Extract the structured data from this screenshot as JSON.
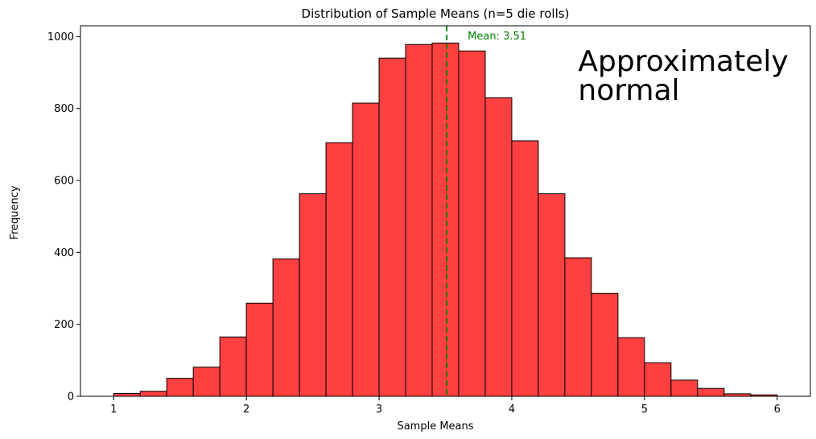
{
  "chart_data": {
    "type": "bar",
    "title": "Distribution of Sample Means (n=5 die rolls)",
    "xlabel": "Sample Means",
    "ylabel": "Frequency",
    "xlim": [
      0.75,
      6.25
    ],
    "ylim": [
      0,
      1030
    ],
    "xticks": [
      1,
      2,
      3,
      4,
      5,
      6
    ],
    "yticks": [
      0,
      200,
      400,
      600,
      800,
      1000
    ],
    "grid": false,
    "bin_edges": [
      1.0,
      1.2,
      1.4,
      1.6,
      1.8,
      2.0,
      2.2,
      2.4,
      2.6,
      2.8,
      3.0,
      3.2,
      3.4,
      3.6,
      3.8,
      4.0,
      4.2,
      4.4,
      4.6,
      4.8,
      5.0,
      5.2,
      5.4,
      5.6,
      5.8,
      6.0
    ],
    "values": [
      8,
      14,
      50,
      81,
      165,
      259,
      382,
      563,
      705,
      815,
      940,
      978,
      982,
      960,
      830,
      710,
      563,
      385,
      286,
      163,
      93,
      45,
      22,
      7,
      4
    ],
    "bar_color": "#ff4040",
    "edge_color": "#000000",
    "mean_line": {
      "value": 3.51,
      "label": "Mean: 3.51",
      "color": "#008000"
    },
    "annotation": {
      "lines": [
        "Approximately",
        "normal"
      ]
    }
  }
}
